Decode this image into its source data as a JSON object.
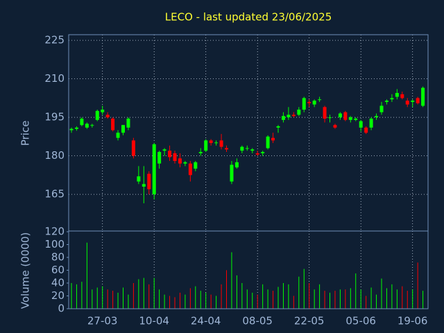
{
  "chart_data": {
    "type": "candlestick",
    "title": "LECO - last updated 23/06/2025",
    "ylabel": "Price",
    "y2label": "Volume (0000)",
    "x": [
      "19-03",
      "20-03",
      "21-03",
      "24-03",
      "25-03",
      "26-03",
      "27-03",
      "28-03",
      "31-03",
      "01-04",
      "02-04",
      "03-04",
      "04-04",
      "07-04",
      "08-04",
      "09-04",
      "10-04",
      "11-04",
      "14-04",
      "15-04",
      "16-04",
      "17-04",
      "18-04",
      "21-04",
      "22-04",
      "23-04",
      "24-04",
      "25-04",
      "28-04",
      "29-04",
      "30-04",
      "01-05",
      "02-05",
      "05-05",
      "06-05",
      "07-05",
      "08-05",
      "09-05",
      "12-05",
      "13-05",
      "14-05",
      "15-05",
      "16-05",
      "19-05",
      "20-05",
      "21-05",
      "22-05",
      "23-05",
      "26-05",
      "27-05",
      "28-05",
      "29-05",
      "30-05",
      "02-06",
      "03-06",
      "04-06",
      "05-06",
      "06-06",
      "09-06",
      "10-06",
      "11-06",
      "12-06",
      "13-06",
      "16-06",
      "17-06",
      "18-06",
      "19-06",
      "20-06",
      "23-06"
    ],
    "open": [
      190,
      190.5,
      192,
      191,
      192,
      194,
      197,
      196,
      194.5,
      187,
      189,
      191,
      186,
      170,
      168,
      173,
      165,
      177,
      182,
      182,
      181,
      179,
      177,
      177,
      175,
      181,
      182,
      186,
      185,
      186,
      183,
      170,
      175.5,
      182,
      183,
      182,
      181,
      181,
      183,
      187,
      191,
      194,
      195,
      196,
      196,
      198,
      201,
      200,
      202,
      199,
      195,
      192,
      195,
      197,
      194,
      194,
      191,
      191,
      191,
      195,
      197,
      201,
      202,
      203,
      204,
      201.5,
      201,
      202.5,
      199.5
    ],
    "high": [
      191,
      191.5,
      195,
      193,
      192.5,
      198,
      199.5,
      197,
      195,
      190,
      192,
      195,
      187,
      176,
      176,
      174,
      185,
      182,
      183,
      184,
      182,
      181,
      178,
      178,
      178,
      183,
      186.5,
      186.5,
      186,
      188.5,
      184,
      178,
      179,
      184,
      184,
      183,
      182,
      182,
      188,
      189,
      192,
      197,
      199,
      197,
      199,
      203,
      202,
      202,
      203,
      199.5,
      196,
      192.5,
      197,
      197.5,
      195.5,
      195,
      194,
      191.5,
      195,
      196.5,
      201,
      202,
      204,
      206,
      205,
      202.5,
      202,
      203,
      207
    ],
    "low": [
      189,
      189.8,
      191.5,
      190.5,
      191,
      193.5,
      196,
      194.5,
      189.5,
      186,
      188,
      190,
      179,
      169,
      161.5,
      165,
      163,
      175,
      180,
      178,
      177,
      175.5,
      176,
      170,
      174,
      180,
      181.5,
      184,
      184,
      182.5,
      181.5,
      169,
      175,
      181,
      182,
      181,
      180,
      180,
      182.5,
      185,
      189,
      193,
      194,
      195,
      195.5,
      197,
      199,
      199,
      201,
      193,
      193,
      190.5,
      194,
      193.5,
      193,
      193.5,
      189.5,
      188.5,
      190,
      194,
      196,
      200,
      201,
      202,
      202,
      199,
      199,
      200,
      199
    ],
    "close": [
      190.5,
      191,
      194.5,
      192.5,
      192,
      197.5,
      198,
      195,
      190,
      189,
      192,
      194.5,
      180,
      172,
      169,
      167,
      184.5,
      181.5,
      182.5,
      179.5,
      178,
      177,
      177.5,
      172.5,
      177.5,
      181.5,
      186,
      185,
      185.2,
      183.5,
      182.5,
      176.5,
      177.5,
      183.5,
      183,
      182.5,
      180.5,
      181.5,
      187.5,
      186,
      191.5,
      195.5,
      196,
      195.5,
      198,
      202.5,
      200.5,
      201.5,
      202,
      194.5,
      195,
      191,
      196.5,
      194,
      195,
      194.5,
      193.5,
      189,
      194.5,
      195.5,
      199.5,
      201.5,
      202.5,
      204.5,
      202.5,
      200,
      201.5,
      200.5,
      206.5
    ],
    "volume": [
      40,
      38,
      42,
      103,
      30,
      33,
      35,
      30,
      28,
      25,
      33,
      22,
      40,
      46,
      48,
      38,
      48,
      30,
      22,
      20,
      18,
      25,
      22,
      32,
      35,
      28,
      25,
      22,
      20,
      38,
      60,
      88,
      52,
      40,
      30,
      25,
      22,
      38,
      30,
      28,
      34,
      40,
      38,
      20,
      50,
      62,
      40,
      30,
      38,
      28,
      25,
      28,
      30,
      30,
      32,
      55,
      30,
      20,
      33,
      22,
      47,
      32,
      38,
      30,
      35,
      28,
      30,
      72,
      28
    ],
    "up_color": "#00ff00",
    "down_color": "#ff0000",
    "xticks": [
      "27-03",
      "10-04",
      "24-04",
      "08-05",
      "22-05",
      "05-06",
      "19-06"
    ],
    "ylim": [
      150.7,
      227.2
    ],
    "yticks": [
      165,
      180,
      195,
      210,
      225
    ],
    "y2lim": [
      0,
      120
    ],
    "y2ticks": [
      0,
      20,
      40,
      60,
      80,
      100,
      120
    ],
    "grid": true
  }
}
